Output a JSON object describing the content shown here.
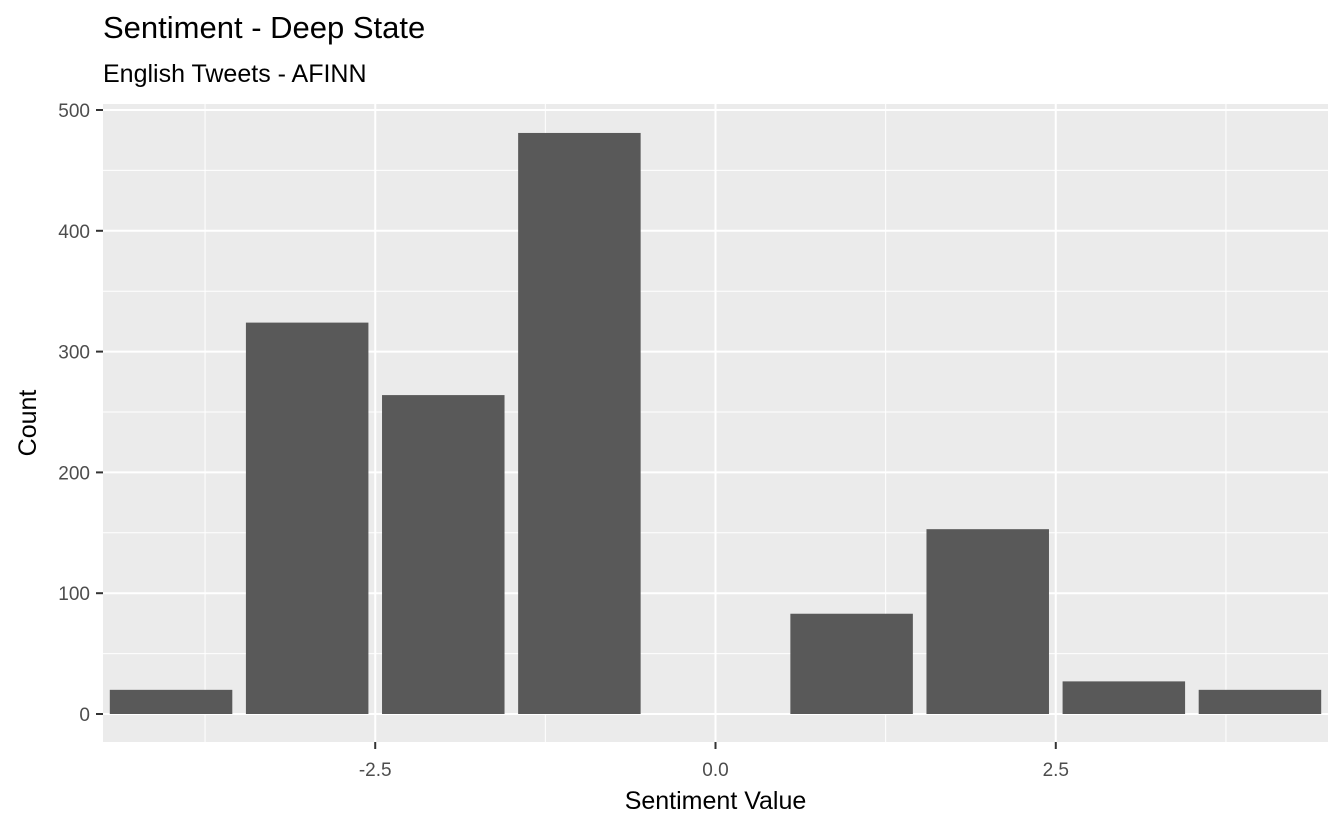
{
  "chart_data": {
    "type": "bar",
    "title": "Sentiment - Deep State",
    "subtitle": "English Tweets - AFINN",
    "xlabel": "Sentiment Value",
    "ylabel": "Count",
    "x": [
      -4,
      -3,
      -2,
      -1,
      1,
      2,
      3,
      4
    ],
    "values": [
      20,
      324,
      264,
      481,
      83,
      153,
      27,
      20
    ],
    "xlim": [
      -4.5,
      4.5
    ],
    "ylim": [
      0,
      505
    ],
    "x_ticks": [
      -2.5,
      0.0,
      2.5
    ],
    "x_tick_labels": [
      "-2.5",
      "0.0",
      "2.5"
    ],
    "y_ticks": [
      0,
      100,
      200,
      300,
      400,
      500
    ],
    "y_tick_labels": [
      "0",
      "100",
      "200",
      "300",
      "400",
      "500"
    ],
    "bar_color": "#595959",
    "panel_background": "#ebebeb",
    "grid": true,
    "legend": "none"
  }
}
